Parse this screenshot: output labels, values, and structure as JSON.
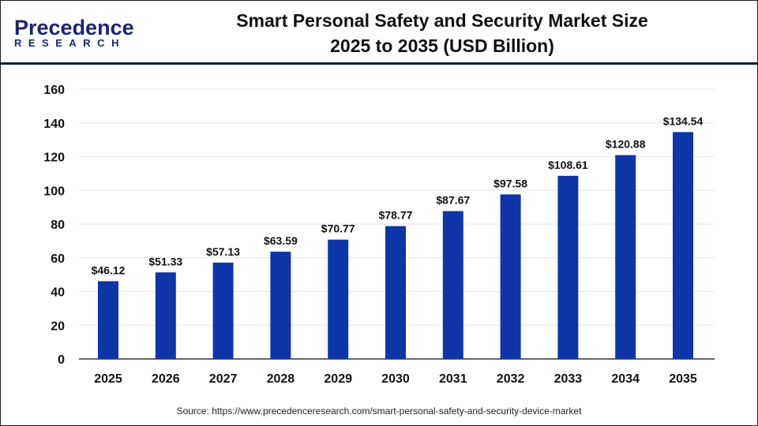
{
  "logo": {
    "brand": "Precedence",
    "sub": "RESEARCH"
  },
  "colors": {
    "bar": "#0f36a8",
    "grid": "#e6e6e6",
    "header_line": "#0d1540"
  },
  "source": "Source: https://www.precedenceresearch.com/smart-personal-safety-and-security-device-market",
  "chart_data": {
    "type": "bar",
    "title": "Smart Personal Safety and Security Market Size 2025 to 2035 (USD Billion)",
    "title_lines": [
      "Smart Personal Safety and Security Market Size",
      "2025 to 2035 (USD Billion)"
    ],
    "categories": [
      "2025",
      "2026",
      "2027",
      "2028",
      "2029",
      "2030",
      "2031",
      "2032",
      "2033",
      "2034",
      "2035"
    ],
    "values": [
      46.12,
      51.33,
      57.13,
      63.59,
      70.77,
      78.77,
      87.67,
      97.58,
      108.61,
      120.88,
      134.54
    ],
    "data_labels": [
      "$46.12",
      "$51.33",
      "$57.13",
      "$63.59",
      "$70.77",
      "$78.77",
      "$87.67",
      "$97.58",
      "$108.61",
      "$120.88",
      "$134.54"
    ],
    "yticks": [
      0,
      20,
      40,
      60,
      80,
      100,
      120,
      140,
      160
    ],
    "ylim": [
      0,
      160
    ],
    "grid": true,
    "xlabel": "",
    "ylabel": ""
  }
}
